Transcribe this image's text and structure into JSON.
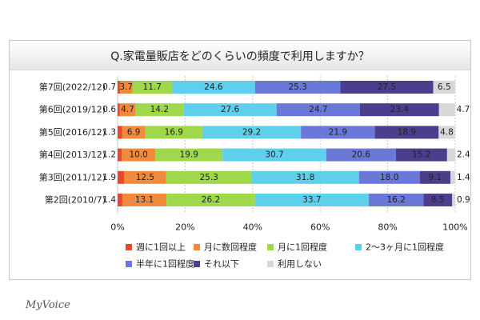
{
  "chart_data": {
    "type": "bar",
    "title": "Q.家電量販店をどのくらいの頻度で利用しますか？",
    "orientation": "horizontal-stacked-100",
    "categories": [
      "第7回(2022/12)",
      "第6回(2019/12)",
      "第5回(2016/12)",
      "第4回(2013/12)",
      "第3回(2011/12)",
      "第2回(2010/7)"
    ],
    "series": [
      {
        "name": "週に1回以上",
        "color": "#e8492c",
        "values": [
          0.7,
          0.6,
          1.3,
          1.2,
          1.9,
          1.4
        ]
      },
      {
        "name": "月に数回程度",
        "color": "#f18a3c",
        "values": [
          3.7,
          4.7,
          6.9,
          10.0,
          12.5,
          13.1
        ]
      },
      {
        "name": "月に1回程度",
        "color": "#9fd84a",
        "values": [
          11.7,
          14.2,
          16.9,
          19.9,
          25.3,
          26.2
        ]
      },
      {
        "name": "2～3ヶ月に1回程度",
        "color": "#5fd0ec",
        "values": [
          24.6,
          27.6,
          29.2,
          30.7,
          31.8,
          33.7
        ]
      },
      {
        "name": "半年に1回程度",
        "color": "#6a78d8",
        "values": [
          25.3,
          24.7,
          21.9,
          20.6,
          18.0,
          16.2
        ]
      },
      {
        "name": "それ以下",
        "color": "#4c3e8c",
        "values": [
          27.5,
          23.4,
          18.9,
          15.2,
          9.1,
          8.5
        ]
      },
      {
        "name": "利用しない",
        "color": "#d8d8d8",
        "values": [
          6.5,
          4.7,
          4.8,
          2.4,
          1.4,
          0.9
        ]
      }
    ],
    "xlim": [
      0,
      100
    ],
    "xticks": [
      "0%",
      "20%",
      "40%",
      "60%",
      "80%",
      "100%"
    ],
    "grid": true,
    "legend_position": "bottom"
  },
  "brand": {
    "logo_text": "MyVoice"
  }
}
